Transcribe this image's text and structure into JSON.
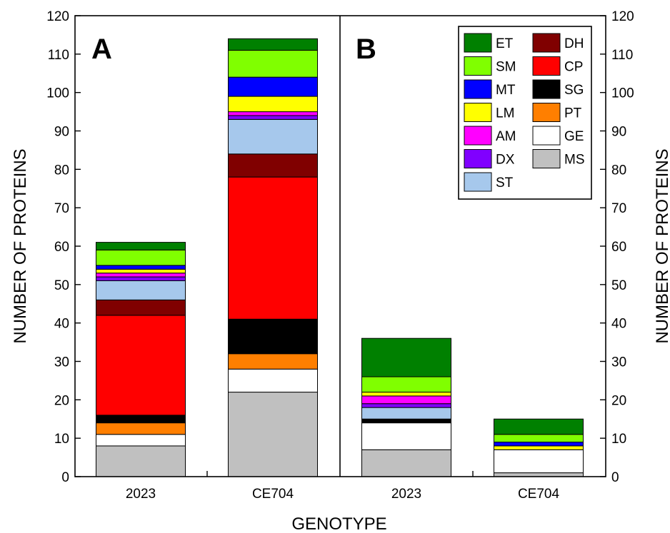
{
  "chart_data": {
    "type": "bar",
    "stacked": true,
    "xlabel": "GENOTYPE",
    "ylabel": "NUMBER OF PROTEINS",
    "ylabel_right": "NUMBER OF PROTEINS",
    "ylim": [
      0,
      120
    ],
    "yticks": [
      "0",
      "10",
      "20",
      "30",
      "40",
      "50",
      "60",
      "70",
      "80",
      "90",
      "100",
      "110",
      "120"
    ],
    "legend_position": "top-right of panel B",
    "panels": [
      {
        "label": "A",
        "categories": [
          "2023",
          "CE704"
        ],
        "series": [
          {
            "name": "MS",
            "color": "#c0c0c0",
            "values": [
              8,
              22
            ]
          },
          {
            "name": "GE",
            "color": "#ffffff",
            "values": [
              3,
              6
            ]
          },
          {
            "name": "PT",
            "color": "#ff7f00",
            "values": [
              3,
              4
            ]
          },
          {
            "name": "SG",
            "color": "#000000",
            "values": [
              2,
              9
            ]
          },
          {
            "name": "CP",
            "color": "#ff0000",
            "values": [
              26,
              37
            ]
          },
          {
            "name": "DH",
            "color": "#800000",
            "values": [
              4,
              6
            ]
          },
          {
            "name": "ST",
            "color": "#a6c8ec",
            "values": [
              5,
              9
            ]
          },
          {
            "name": "DX",
            "color": "#8000ff",
            "values": [
              1,
              1
            ]
          },
          {
            "name": "AM",
            "color": "#ff00ff",
            "values": [
              1,
              1
            ]
          },
          {
            "name": "LM",
            "color": "#ffff00",
            "values": [
              1,
              4
            ]
          },
          {
            "name": "MT",
            "color": "#0000ff",
            "values": [
              1,
              5
            ]
          },
          {
            "name": "SM",
            "color": "#80ff00",
            "values": [
              4,
              7
            ]
          },
          {
            "name": "ET",
            "color": "#008000",
            "values": [
              2,
              3
            ]
          }
        ]
      },
      {
        "label": "B",
        "categories": [
          "2023",
          "CE704"
        ],
        "series": [
          {
            "name": "MS",
            "color": "#c0c0c0",
            "values": [
              7,
              1
            ]
          },
          {
            "name": "GE",
            "color": "#ffffff",
            "values": [
              7,
              6
            ]
          },
          {
            "name": "PT",
            "color": "#ff7f00",
            "values": [
              0,
              0
            ]
          },
          {
            "name": "SG",
            "color": "#000000",
            "values": [
              1,
              0
            ]
          },
          {
            "name": "CP",
            "color": "#ff0000",
            "values": [
              0,
              0
            ]
          },
          {
            "name": "DH",
            "color": "#800000",
            "values": [
              0,
              0
            ]
          },
          {
            "name": "ST",
            "color": "#a6c8ec",
            "values": [
              3,
              0
            ]
          },
          {
            "name": "DX",
            "color": "#8000ff",
            "values": [
              1,
              0
            ]
          },
          {
            "name": "AM",
            "color": "#ff00ff",
            "values": [
              2,
              0
            ]
          },
          {
            "name": "LM",
            "color": "#ffff00",
            "values": [
              1,
              1
            ]
          },
          {
            "name": "MT",
            "color": "#0000ff",
            "values": [
              0,
              1
            ]
          },
          {
            "name": "SM",
            "color": "#80ff00",
            "values": [
              4,
              2
            ]
          },
          {
            "name": "ET",
            "color": "#008000",
            "values": [
              10,
              4
            ]
          }
        ]
      }
    ],
    "legend": {
      "left_column": [
        {
          "name": "ET",
          "color": "#008000"
        },
        {
          "name": "SM",
          "color": "#80ff00"
        },
        {
          "name": "MT",
          "color": "#0000ff"
        },
        {
          "name": "LM",
          "color": "#ffff00"
        },
        {
          "name": "AM",
          "color": "#ff00ff"
        },
        {
          "name": "DX",
          "color": "#8000ff"
        },
        {
          "name": "ST",
          "color": "#a6c8ec"
        }
      ],
      "right_column": [
        {
          "name": "DH",
          "color": "#800000"
        },
        {
          "name": "CP",
          "color": "#ff0000"
        },
        {
          "name": "SG",
          "color": "#000000"
        },
        {
          "name": "PT",
          "color": "#ff7f00"
        },
        {
          "name": "GE",
          "color": "#ffffff"
        },
        {
          "name": "MS",
          "color": "#c0c0c0"
        }
      ]
    }
  }
}
